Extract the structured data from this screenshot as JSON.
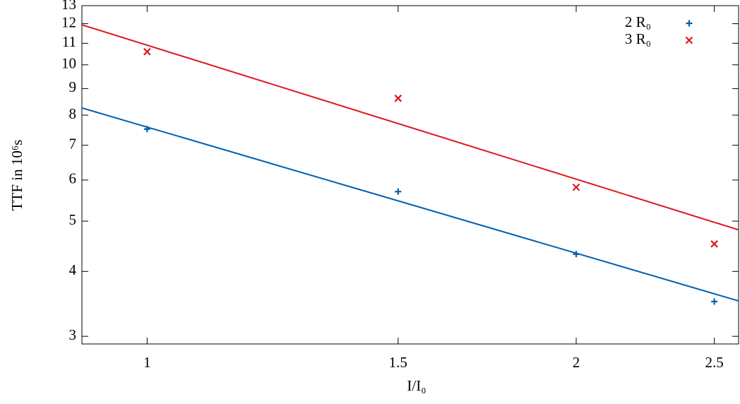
{
  "chart_data": {
    "type": "scatter",
    "x_label": "I/I₀",
    "y_label": "TTF in 10⁶s",
    "xlim": [
      0.9,
      2.6
    ],
    "ylim": [
      2.9,
      13
    ],
    "xticks": [
      1,
      1.5,
      2,
      2.5
    ],
    "yticks": [
      3,
      4,
      5,
      6,
      7,
      8,
      9,
      10,
      11,
      12,
      13
    ],
    "xscale": "log",
    "yscale": "log",
    "legend": "top-right",
    "series": [
      {
        "name": "2 R₀",
        "color": "#0060ad",
        "marker": "plus",
        "x": [
          1,
          1.5,
          2,
          2.5
        ],
        "values": [
          7.52,
          5.7,
          4.32,
          3.5
        ]
      },
      {
        "name": "3 R₀",
        "color": "#dd181f",
        "marker": "cross",
        "x": [
          1,
          1.5,
          2,
          2.5
        ],
        "values": [
          10.6,
          8.62,
          5.81,
          4.52
        ]
      }
    ],
    "fits": [
      {
        "color": "#0060ad",
        "x": [
          0.9,
          2.6
        ],
        "values": [
          8.26,
          3.51
        ]
      },
      {
        "color": "#dd181f",
        "x": [
          0.9,
          2.6
        ],
        "values": [
          11.94,
          4.81
        ]
      }
    ]
  }
}
